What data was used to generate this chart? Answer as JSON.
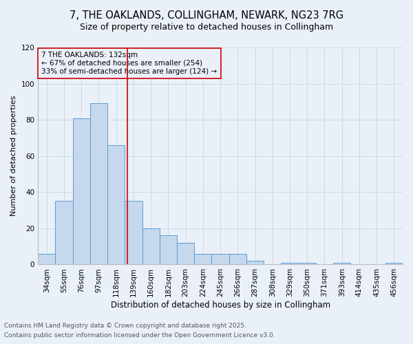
{
  "title_line1": "7, THE OAKLANDS, COLLINGHAM, NEWARK, NG23 7RG",
  "title_line2": "Size of property relative to detached houses in Collingham",
  "xlabel": "Distribution of detached houses by size in Collingham",
  "ylabel": "Number of detached properties",
  "bar_labels": [
    "34sqm",
    "55sqm",
    "76sqm",
    "97sqm",
    "118sqm",
    "139sqm",
    "160sqm",
    "182sqm",
    "203sqm",
    "224sqm",
    "245sqm",
    "266sqm",
    "287sqm",
    "308sqm",
    "329sqm",
    "350sqm",
    "371sqm",
    "393sqm",
    "414sqm",
    "435sqm",
    "456sqm"
  ],
  "bar_values": [
    6,
    35,
    81,
    89,
    66,
    35,
    20,
    16,
    12,
    6,
    6,
    6,
    2,
    0,
    1,
    1,
    0,
    1,
    0,
    0,
    1
  ],
  "bar_color": "#c5d8ed",
  "bar_edge_color": "#5b9bd5",
  "grid_color": "#d0d8e8",
  "background_color": "#eaf0f8",
  "vline_color": "#cc0000",
  "vline_x": 4.64,
  "annotation_text": "7 THE OAKLANDS: 132sqm\n← 67% of detached houses are smaller (254)\n33% of semi-detached houses are larger (124) →",
  "ylim": [
    0,
    120
  ],
  "yticks": [
    0,
    20,
    40,
    60,
    80,
    100,
    120
  ],
  "footnote_line1": "Contains HM Land Registry data © Crown copyright and database right 2025.",
  "footnote_line2": "Contains public sector information licensed under the Open Government Licence v3.0.",
  "title1_fontsize": 10.5,
  "title2_fontsize": 9,
  "xlabel_fontsize": 8.5,
  "ylabel_fontsize": 8,
  "tick_fontsize": 7.5,
  "annotation_fontsize": 7.5,
  "footnote_fontsize": 6.5
}
